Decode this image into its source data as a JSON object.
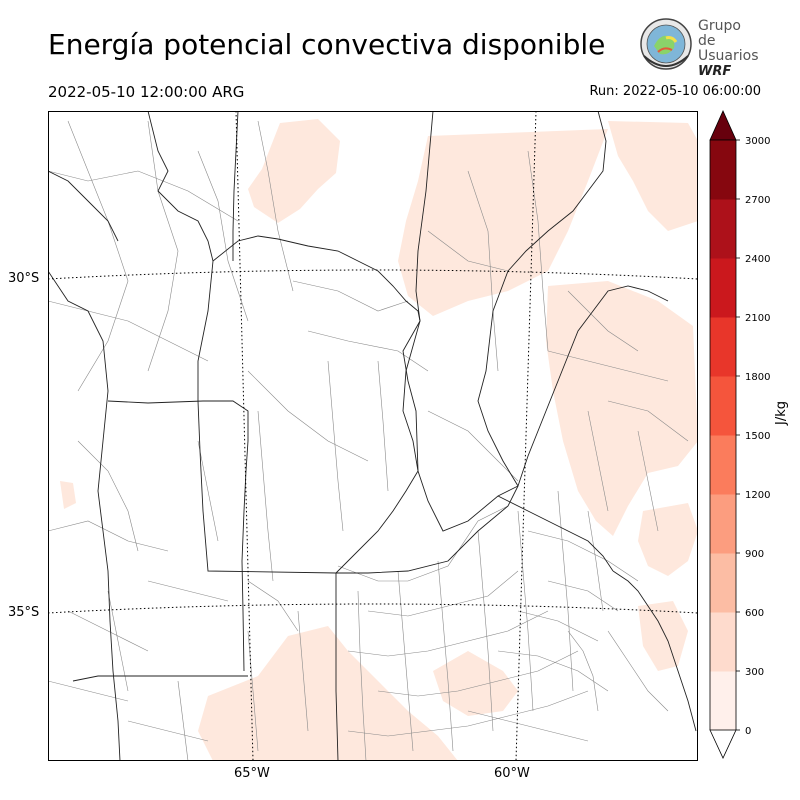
{
  "header": {
    "title": "Energía potencial convectiva disponible",
    "valid_time": "2022-05-10 12:00:00 ARG",
    "run_time": "Run: 2022-05-10 06:00:00"
  },
  "logo": {
    "line1": "Grupo de",
    "line2": "Usuarios",
    "line3": "WRF"
  },
  "map": {
    "lat_labels": [
      "30°S",
      "35°S"
    ],
    "lon_labels": [
      "65°W",
      "60°W"
    ],
    "field_color": "#fee8dd",
    "border_color": "#000000",
    "department_color": "#8a8a8a"
  },
  "colorbar": {
    "unit": "J/kg",
    "ticks": [
      "0",
      "300",
      "600",
      "900",
      "1200",
      "1500",
      "1800",
      "2100",
      "2400",
      "2700",
      "3000"
    ],
    "colors": [
      "#fff0eb",
      "#fedbcd",
      "#fcbda4",
      "#fc9d7f",
      "#fb7c5c",
      "#f5553c",
      "#e8362a",
      "#cb181d",
      "#ad111a",
      "#86070f",
      "#67000d"
    ]
  }
}
